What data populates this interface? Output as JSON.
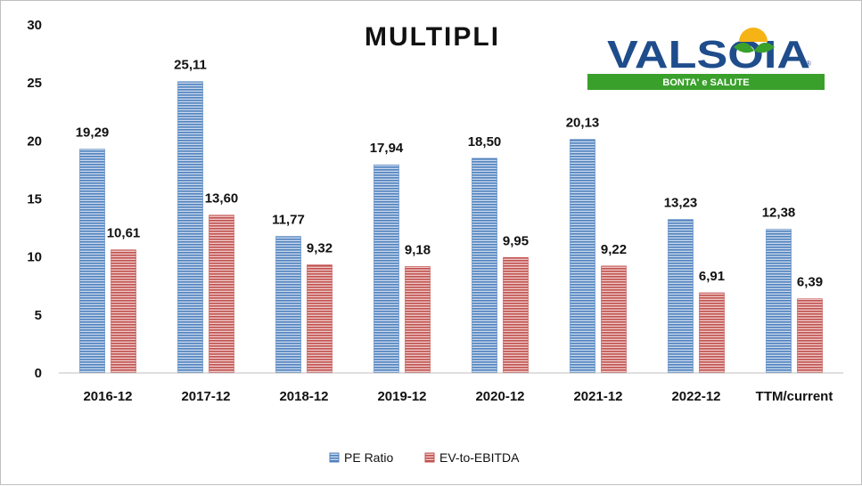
{
  "logo": {
    "brand": "VALSOIA",
    "tagline": "BONTA' e SALUTE"
  },
  "colors": {
    "pe_ratio": "#4f81bd",
    "ev_ebitda": "#c0504d",
    "logo_blue": "#1f4d8c",
    "logo_green": "#3aa02c"
  },
  "chart_data": {
    "type": "bar",
    "title": "MULTIPLI",
    "categories": [
      "2016-12",
      "2017-12",
      "2018-12",
      "2019-12",
      "2020-12",
      "2021-12",
      "2022-12",
      "TTM/current"
    ],
    "series": [
      {
        "name": "PE Ratio",
        "values": [
          19.29,
          25.11,
          11.77,
          17.94,
          18.5,
          20.13,
          13.23,
          12.38
        ],
        "labels": [
          "19,29",
          "25,11",
          "11,77",
          "17,94",
          "18,50",
          "20,13",
          "13,23",
          "12,38"
        ]
      },
      {
        "name": "EV-to-EBITDA",
        "values": [
          10.61,
          13.6,
          9.32,
          9.18,
          9.95,
          9.22,
          6.91,
          6.39
        ],
        "labels": [
          "10,61",
          "13,60",
          "9,32",
          "9,18",
          "9,95",
          "9,22",
          "6,91",
          "6,39"
        ]
      }
    ],
    "ylim": [
      0,
      30
    ],
    "yticks": [
      0,
      5,
      10,
      15,
      20,
      25,
      30
    ],
    "grid": false,
    "legend": "bottom"
  }
}
